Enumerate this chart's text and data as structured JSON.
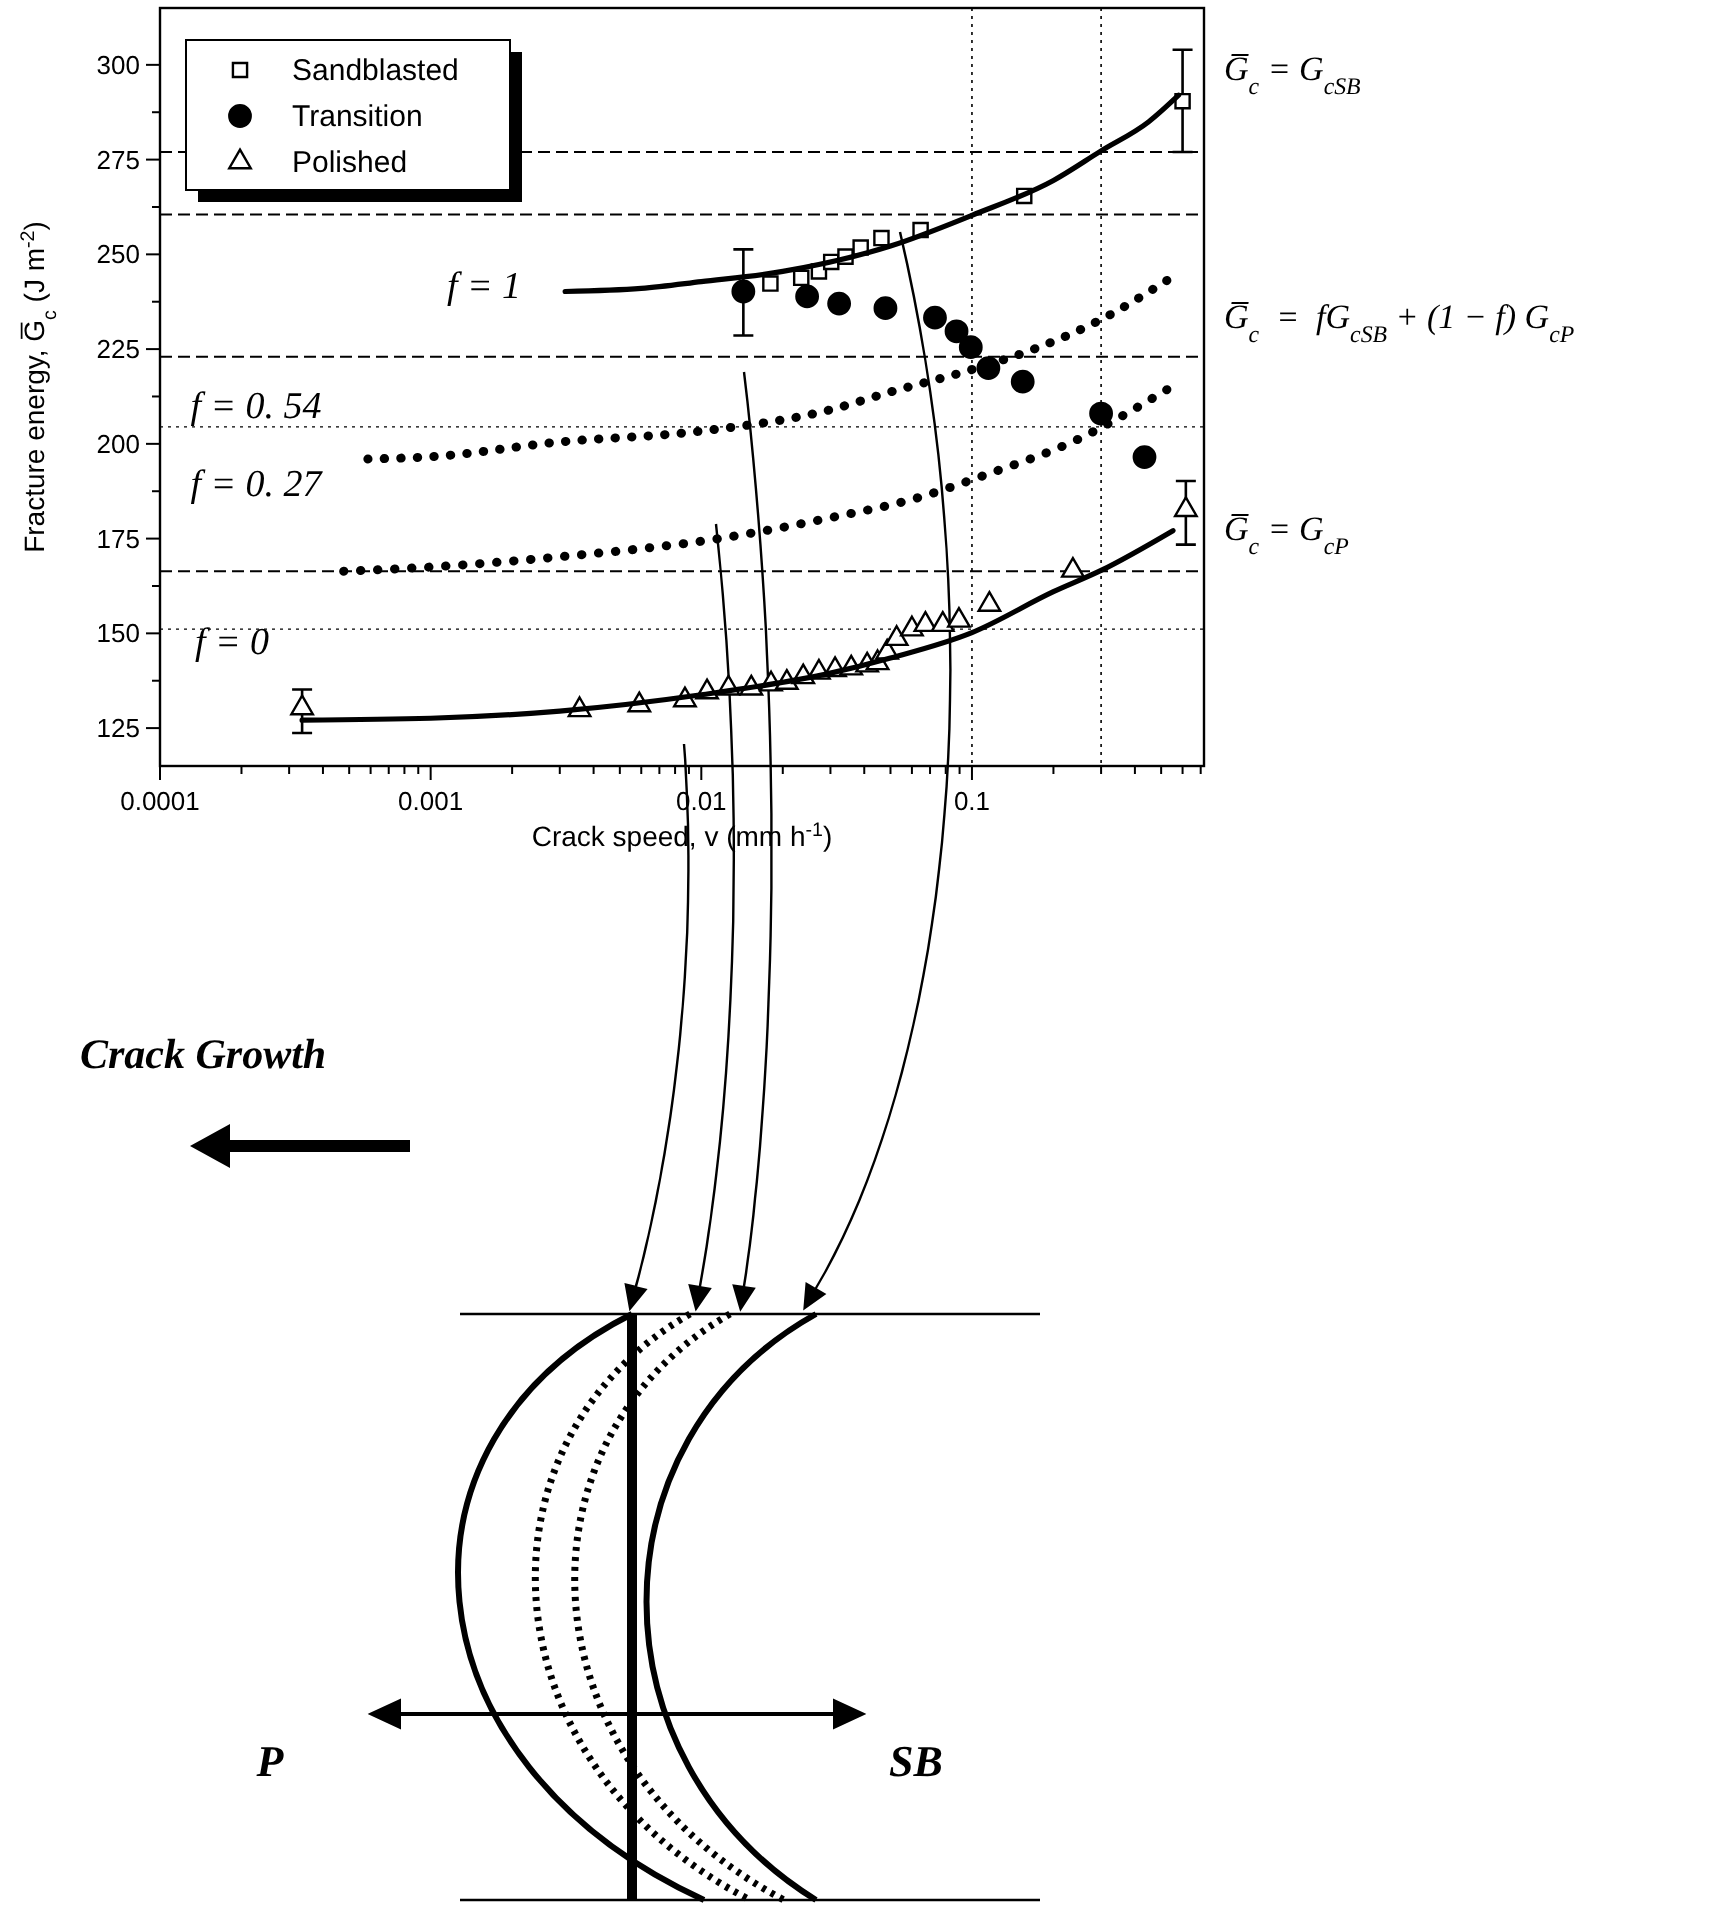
{
  "chart_data": {
    "type": "scatter",
    "xlabel": "Crack speed, v (mm h$^{-1}$)",
    "ylabel": "Fracture energy, G̅$_{c}$ (J m$^{-2}$)",
    "log": "x",
    "xlim": [
      0.0001,
      0.72
    ],
    "ylim": [
      115,
      315
    ],
    "xticks": [
      0.0001,
      {
        "value": 0.0002,
        "label": null
      },
      {
        "value": 0.0003,
        "label": null
      },
      {
        "value": 0.0004,
        "label": null
      },
      {
        "value": 0.0005,
        "label": null
      },
      {
        "value": 0.0006,
        "label": null
      },
      {
        "value": 0.0007,
        "label": null
      },
      {
        "value": 0.0008,
        "label": null
      },
      {
        "value": 0.0009,
        "label": null
      },
      0.001,
      {
        "value": 0.002,
        "label": null
      },
      {
        "value": 0.003,
        "label": null
      },
      {
        "value": 0.004,
        "label": null
      },
      {
        "value": 0.005,
        "label": null
      },
      {
        "value": 0.006,
        "label": null
      },
      {
        "value": 0.007,
        "label": null
      },
      {
        "value": 0.008,
        "label": null
      },
      {
        "value": 0.009,
        "label": null
      },
      0.01,
      {
        "value": 0.02,
        "label": null
      },
      {
        "value": 0.03,
        "label": null
      },
      {
        "value": 0.04,
        "label": null
      },
      {
        "value": 0.05,
        "label": null
      },
      {
        "value": 0.06,
        "label": null
      },
      {
        "value": 0.07,
        "label": null
      },
      {
        "value": 0.08,
        "label": null
      },
      {
        "value": 0.09,
        "label": null
      },
      0.1,
      {
        "value": 0.2,
        "label": null
      },
      {
        "value": 0.3,
        "label": null
      },
      {
        "value": 0.4,
        "label": null
      },
      {
        "value": 0.5,
        "label": null
      },
      {
        "value": 0.6,
        "label": null
      },
      {
        "value": 0.7,
        "label": null
      }
    ],
    "yticks": [
      125,
      {
        "value": 137.5,
        "label": null
      },
      150,
      {
        "value": 162.5,
        "label": null
      },
      175,
      {
        "value": 187.5,
        "label": null
      },
      200,
      {
        "value": 212.5,
        "label": null
      },
      225,
      {
        "value": 237.5,
        "label": null
      },
      250,
      {
        "value": 262.5,
        "label": null
      },
      275,
      {
        "value": 287.5,
        "label": null
      },
      300
    ],
    "grid": false,
    "legend": "top left",
    "series": [
      {
        "name": "Sandblasted",
        "type": "scatter",
        "marker": "square",
        "color": "#000000",
        "x": [
          0.018,
          0.0234,
          0.0272,
          0.0302,
          0.0341,
          0.0388,
          0.0463,
          0.0646,
          0.156,
          0.6
        ],
        "values": [
          242.3,
          243.8,
          245.5,
          248,
          249.4,
          251.8,
          254.3,
          256.4,
          265.4,
          290.4
        ],
        "errors": [
          null,
          null,
          null,
          null,
          null,
          null,
          null,
          null,
          null,
          [
            277,
            304
          ]
        ]
      },
      {
        "name": "Transition",
        "type": "scatter",
        "marker": "circle",
        "color": "#000000",
        "x": [
          0.0143,
          0.0246,
          0.0323,
          0.0479,
          0.073,
          0.0877,
          0.099,
          0.115,
          0.154,
          0.3,
          0.434
        ],
        "values": [
          240.2,
          238.9,
          237,
          235.8,
          233.3,
          229.7,
          225.5,
          220,
          216.4,
          208,
          196.5
        ],
        "errors": [
          [
            228.6,
            251.3
          ],
          null,
          null,
          null,
          null,
          null,
          null,
          null,
          null,
          null,
          null
        ]
      },
      {
        "name": "Polished",
        "type": "scatter",
        "marker": "triangle",
        "color": "#000000",
        "x": [
          0.000335,
          0.00355,
          0.0059,
          0.0087,
          0.0105,
          0.0126,
          0.0153,
          0.0181,
          0.0207,
          0.0238,
          0.0272,
          0.0312,
          0.0358,
          0.041,
          0.0448,
          0.0486,
          0.0527,
          0.06,
          0.0673,
          0.078,
          0.0895,
          0.116,
          0.236,
          0.617
        ],
        "values": [
          130.3,
          129.8,
          131.1,
          132.4,
          134.5,
          135.5,
          135.5,
          136.6,
          137,
          138.5,
          139.7,
          140.4,
          140.8,
          141.6,
          142.2,
          145,
          148.6,
          151.1,
          152.3,
          152.3,
          153.4,
          157.6,
          166.6,
          182.6
        ],
        "errors": [
          [
            123.7,
            135.2
          ],
          null,
          null,
          null,
          null,
          null,
          null,
          null,
          null,
          null,
          null,
          null,
          null,
          null,
          null,
          null,
          null,
          null,
          null,
          null,
          null,
          null,
          null,
          [
            173.4,
            190.2
          ]
        ]
      },
      {
        "type": "line",
        "marker": "none",
        "line_style": "solid",
        "color": "#000000",
        "x": [
          0.00314,
          0.006,
          0.01,
          0.02,
          0.05,
          0.1,
          0.2,
          0.3,
          0.45,
          0.58
        ],
        "values": [
          240.2,
          241,
          242.8,
          245.5,
          252.2,
          260.3,
          269.5,
          277.3,
          285,
          292
        ]
      },
      {
        "type": "line",
        "marker": "none",
        "line_style": "dotted",
        "color": "#000000",
        "x": [
          0.000586,
          0.001,
          0.003,
          0.0095,
          0.03,
          0.05,
          0.1,
          0.168,
          0.3,
          0.525
        ],
        "values": [
          196,
          196.6,
          200.5,
          203.2,
          209,
          213.7,
          219.6,
          224.9,
          232.8,
          243.1
        ]
      },
      {
        "type": "line",
        "marker": "none",
        "line_style": "dotted",
        "color": "#000000",
        "x": [
          0.000477,
          0.001,
          0.003,
          0.0116,
          0.03,
          0.064,
          0.11,
          0.248,
          0.525
        ],
        "values": [
          166.4,
          167.5,
          170.2,
          175,
          180.5,
          185.9,
          191.6,
          201.3,
          214.3
        ]
      },
      {
        "type": "line",
        "marker": "none",
        "line_style": "solid",
        "color": "#000000",
        "x": [
          0.000335,
          0.001,
          0.003,
          0.01,
          0.03,
          0.05,
          0.1,
          0.2,
          0.3,
          0.553
        ],
        "values": [
          127.1,
          127.6,
          129.5,
          133.8,
          139.5,
          143.5,
          150.2,
          161,
          166.6,
          177.1
        ]
      }
    ],
    "ref_lines": [
      {
        "axis": "y",
        "value": 277,
        "line_style": "dashed"
      },
      {
        "axis": "y",
        "value": 260.5,
        "line_style": "dashed"
      },
      {
        "axis": "y",
        "value": 223,
        "line_style": "dashed"
      },
      {
        "axis": "y",
        "value": 204.5,
        "line_style": "dotted"
      },
      {
        "axis": "y",
        "value": 166.4,
        "line_style": "dashed"
      },
      {
        "axis": "y",
        "value": 151.1,
        "line_style": "dotted"
      },
      {
        "axis": "x",
        "value": 0.1,
        "line_style": "dotted"
      },
      {
        "axis": "x",
        "value": 0.3,
        "line_style": "dotted"
      }
    ],
    "annotations": [
      "f = 1",
      "f = 0. 54",
      "f = 0. 27",
      "f = 0",
      "G̅$_{c}$ = G$_{cSB}$",
      "G̅$_{c}$  =  fG$_{cSB}$ + (1 − f) G$_{cP}$",
      "G̅$_{c}$ = G$_{cP}$",
      "Crack Growth",
      "P",
      "SB"
    ]
  }
}
